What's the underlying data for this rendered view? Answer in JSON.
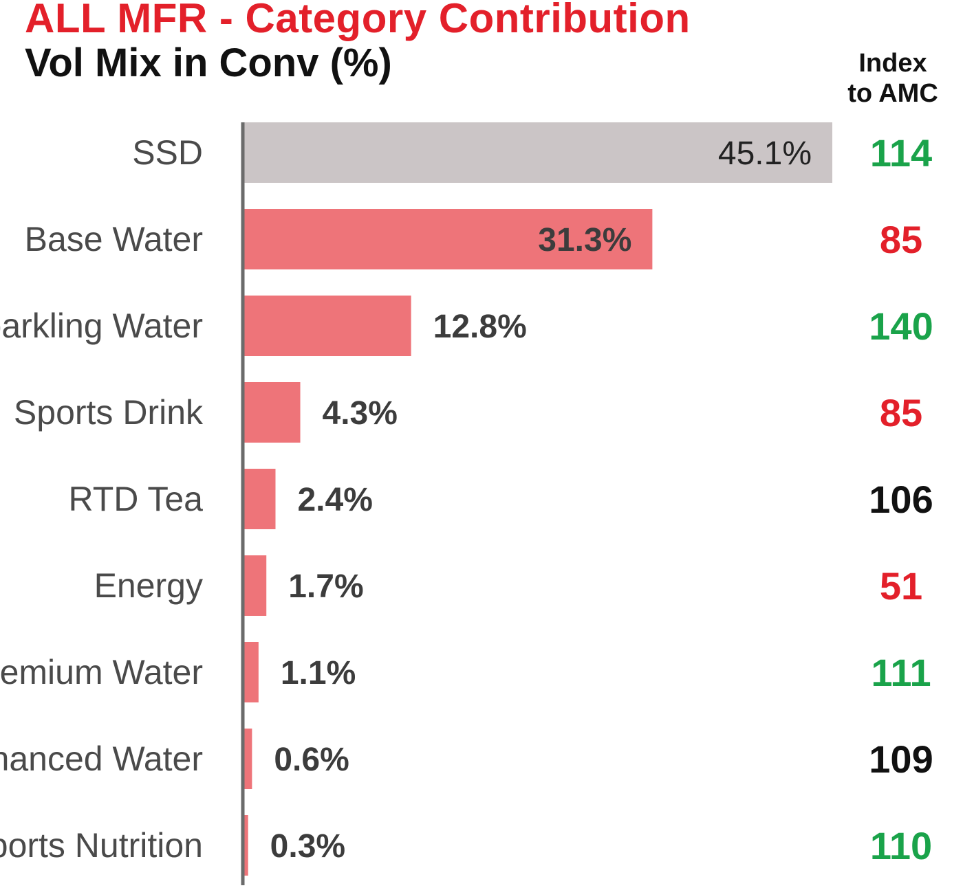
{
  "chart_data": {
    "type": "bar",
    "orientation": "horizontal",
    "title": "ALL MFR - Category Contribution",
    "subtitle": "Vol Mix in Conv (%)",
    "index_header": [
      "Index",
      "to AMC"
    ],
    "categories": [
      "SSD",
      "Base Water",
      "Sparkling Water",
      "Sports Drink",
      "RTD Tea",
      "Energy",
      "Premium Water",
      "Enhanced Water",
      "Sports Nutrition"
    ],
    "value_labels": [
      "45.1%",
      "31.3%",
      "12.8%",
      "4.3%",
      "2.4%",
      "1.7%",
      "1.1%",
      "0.6%",
      "0.3%"
    ],
    "values": [
      45.1,
      31.3,
      12.8,
      4.3,
      2.4,
      1.7,
      1.1,
      0.6,
      0.3
    ],
    "index_values": [
      "114",
      "85",
      "140",
      "85",
      "106",
      "51",
      "111",
      "109",
      "110"
    ],
    "index_colors": [
      "#1aa34a",
      "#e3202a",
      "#1aa34a",
      "#e3202a",
      "#111111",
      "#e3202a",
      "#1aa34a",
      "#111111",
      "#1aa34a"
    ],
    "bar_colors": [
      "#cbc5c6",
      "#ee7479",
      "#ee7479",
      "#ee7479",
      "#ee7479",
      "#ee7479",
      "#ee7479",
      "#ee7479",
      "#ee7479"
    ],
    "xlim": [
      0,
      45.1
    ],
    "grid": false,
    "legend": "none"
  }
}
